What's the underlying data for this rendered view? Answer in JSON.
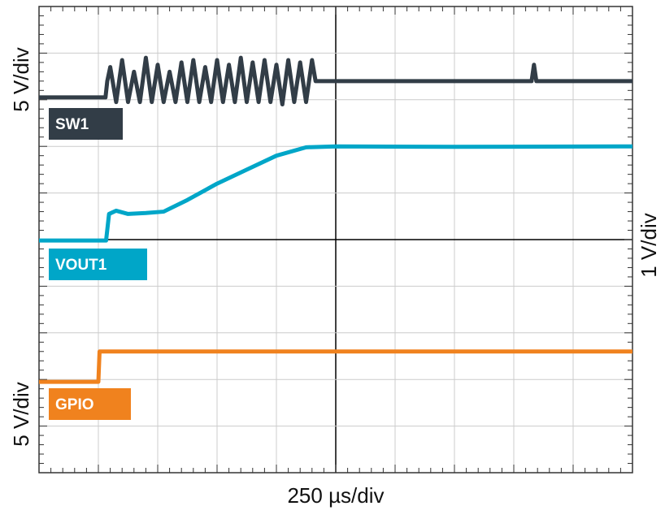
{
  "chart_data": {
    "type": "line",
    "left_axis_top_label": "5 V/div",
    "left_axis_bottom_label": "5 V/div",
    "right_axis_label": "1 V/div",
    "x_axis_label": "250 µs/div",
    "xlim": [
      0,
      10
    ],
    "ylim": [
      0,
      10
    ],
    "grid": true,
    "grid_divisions": {
      "x": 10,
      "y": 10
    },
    "minor_ticks_per_division": 5,
    "series": [
      {
        "name": "SW1",
        "color": "#323d47",
        "x": [
          0,
          1.12,
          1.15,
          1.2,
          1.3,
          1.4,
          1.5,
          1.6,
          1.7,
          1.8,
          1.9,
          2.0,
          2.1,
          2.2,
          2.3,
          2.4,
          2.5,
          2.6,
          2.7,
          2.8,
          2.9,
          3.0,
          3.1,
          3.2,
          3.3,
          3.4,
          3.5,
          3.6,
          3.7,
          3.8,
          3.9,
          4.0,
          4.1,
          4.2,
          4.3,
          4.4,
          4.5,
          4.6,
          4.66,
          8.3,
          8.34,
          8.38,
          10
        ],
        "values": [
          8.05,
          8.05,
          8.4,
          8.7,
          7.95,
          8.85,
          7.95,
          8.6,
          7.95,
          8.9,
          7.95,
          8.75,
          7.95,
          8.6,
          7.95,
          8.8,
          7.95,
          8.85,
          7.95,
          8.7,
          7.95,
          8.85,
          7.95,
          8.75,
          7.95,
          8.9,
          7.95,
          8.8,
          7.95,
          8.85,
          7.95,
          8.75,
          7.9,
          8.85,
          7.95,
          8.8,
          7.95,
          8.85,
          8.4,
          8.4,
          8.75,
          8.4,
          8.4
        ]
      },
      {
        "name": "VOUT1",
        "color": "#00a6c8",
        "x": [
          0,
          1.13,
          1.18,
          1.3,
          1.5,
          1.8,
          2.1,
          2.5,
          3.0,
          3.5,
          4.0,
          4.5,
          5.0,
          7.0,
          10
        ],
        "values": [
          4.98,
          4.98,
          5.55,
          5.62,
          5.55,
          5.57,
          5.6,
          5.85,
          6.2,
          6.5,
          6.8,
          6.98,
          7.0,
          6.99,
          7.0
        ]
      },
      {
        "name": "GPIO",
        "color": "#f0821e",
        "x": [
          0,
          1.0,
          1.02,
          10
        ],
        "values": [
          1.95,
          1.95,
          2.6,
          2.6
        ]
      }
    ]
  }
}
